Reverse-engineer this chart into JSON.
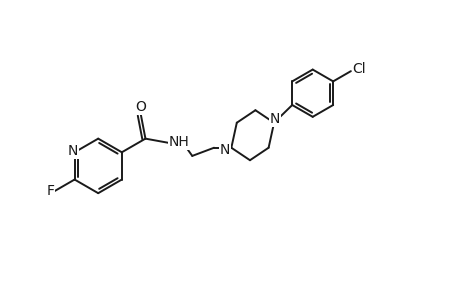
{
  "background_color": "#ffffff",
  "line_color": "#1a1a1a",
  "line_width": 1.4,
  "font_size": 9.5,
  "xlim": [
    0,
    10.0
  ],
  "ylim": [
    2.5,
    8.0
  ]
}
